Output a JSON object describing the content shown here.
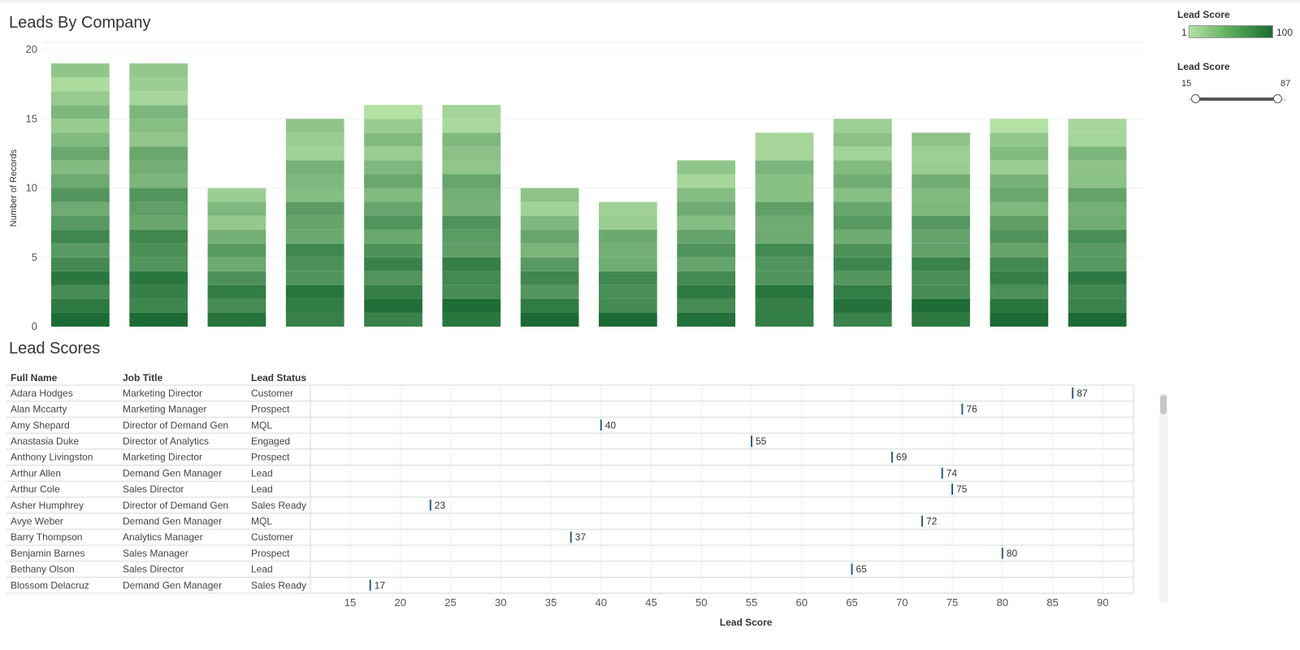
{
  "chart_data": [
    {
      "type": "bar",
      "stacked": true,
      "title": "Leads By Company",
      "ylabel": "Number of Records",
      "xlabel": "",
      "ylim": [
        0,
        20
      ],
      "yticks": [
        0,
        5,
        10,
        15,
        20
      ],
      "grid": true,
      "color_legend": "Lead Score",
      "color_range": [
        1,
        100
      ],
      "colors": [
        "#b5e2a5",
        "#1c6b35"
      ],
      "values": [
        19,
        19,
        10,
        15,
        16,
        16,
        10,
        9,
        12,
        14,
        15,
        14,
        15,
        15
      ]
    },
    {
      "type": "scatter",
      "title": "Lead Scores",
      "xlabel": "Lead Score",
      "xticks": [
        15,
        20,
        25,
        30,
        35,
        40,
        45,
        50,
        55,
        60,
        65,
        70,
        75,
        80,
        85,
        90
      ],
      "xlim": [
        11,
        93
      ],
      "columns": [
        "Full Name",
        "Job Title",
        "Lead Status"
      ],
      "rows": [
        {
          "name": "Adara Hodges",
          "title": "Marketing Director",
          "status": "Customer",
          "score": 87
        },
        {
          "name": "Alan Mccarty",
          "title": "Marketing Manager",
          "status": "Prospect",
          "score": 76
        },
        {
          "name": "Amy Shepard",
          "title": "Director of Demand Gen",
          "status": "MQL",
          "score": 40
        },
        {
          "name": "Anastasia Duke",
          "title": "Director of Analytics",
          "status": "Engaged",
          "score": 55
        },
        {
          "name": "Anthony Livingston",
          "title": "Marketing Director",
          "status": "Prospect",
          "score": 69
        },
        {
          "name": "Arthur Allen",
          "title": "Demand Gen Manager",
          "status": "Lead",
          "score": 74
        },
        {
          "name": "Arthur Cole",
          "title": "Sales Director",
          "status": "Lead",
          "score": 75
        },
        {
          "name": "Asher Humphrey",
          "title": "Director of Demand Gen",
          "status": "Sales Ready",
          "score": 23
        },
        {
          "name": "Avye Weber",
          "title": "Demand Gen Manager",
          "status": "MQL",
          "score": 72
        },
        {
          "name": "Barry Thompson",
          "title": "Analytics Manager",
          "status": "Customer",
          "score": 37
        },
        {
          "name": "Benjamin Barnes",
          "title": "Sales Manager",
          "status": "Prospect",
          "score": 80
        },
        {
          "name": "Bethany Olson",
          "title": "Sales Director",
          "status": "Lead",
          "score": 65
        },
        {
          "name": "Blossom Delacruz",
          "title": "Demand Gen Manager",
          "status": "Sales Ready",
          "score": 17
        }
      ],
      "mark_color": "#2b5c8a"
    }
  ],
  "legends": {
    "color": {
      "title": "Lead Score",
      "min": "1",
      "max": "100"
    },
    "filter": {
      "title": "Lead Score",
      "min": "15",
      "max": "87",
      "value_min": 15,
      "value_max": 87
    }
  }
}
